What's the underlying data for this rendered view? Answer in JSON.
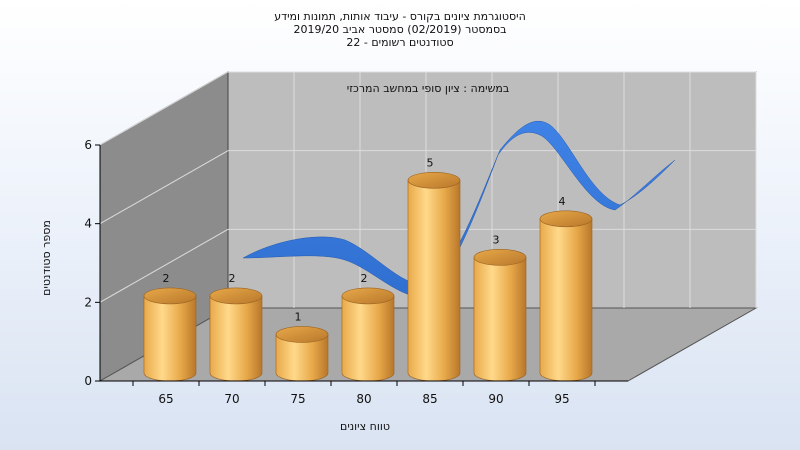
{
  "chart_data": {
    "type": "bar",
    "title_lines": [
      "היסטוגרמת ציונים בקורס - עיבוד אותות, תמונות ומידע",
      "בסמסטר  (02/2019)  סמסטר אביב 2019/20",
      "סטודנטים רשומים - 22"
    ],
    "subtitle": "במשימה : ציון סופי במחשב המרכזי",
    "xlabel": "טווח ציונים",
    "ylabel": "מספר סטודנטים",
    "categories": [
      "65",
      "70",
      "75",
      "80",
      "85",
      "90",
      "95"
    ],
    "values": [
      2,
      2,
      1,
      2,
      5,
      3,
      4
    ],
    "y_ticks": [
      "0",
      "2",
      "4",
      "6"
    ],
    "ylim": [
      0,
      6
    ],
    "view": "3d",
    "bar_shape": "cylinder",
    "grid": true,
    "colors": {
      "bar_light": "#ffd98a",
      "bar_mid": "#e8a94a",
      "bar_dark": "#b8772a",
      "curve": "#2f6fd0",
      "back_wall": "#bdbdbd",
      "side_wall": "#8c8c8c",
      "floor": "#a9a9a9"
    }
  }
}
